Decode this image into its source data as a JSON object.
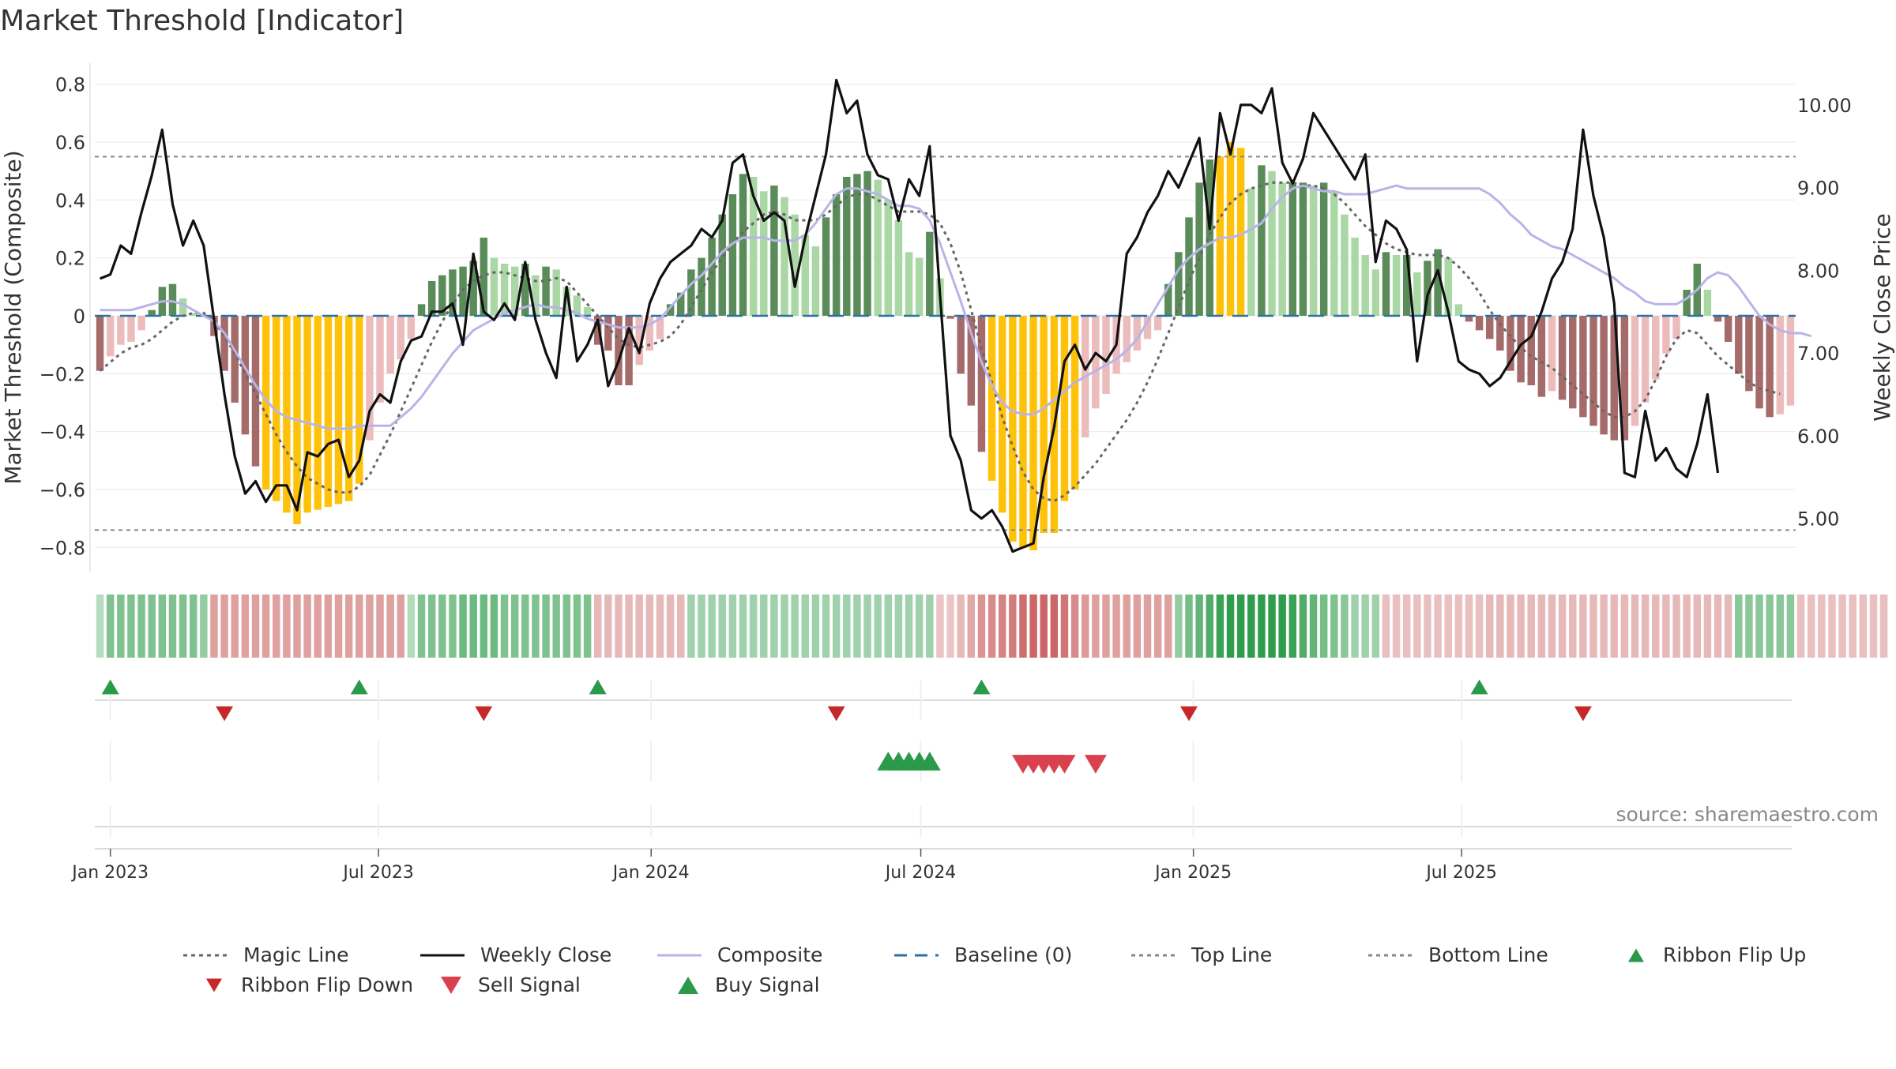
{
  "colors": {
    "pos_dark": "#5a8c5a",
    "pos_light": "#a9d8a4",
    "neg_dark": "#a56b6b",
    "neg_light": "#ecbcbc",
    "extreme": "#ffc20a",
    "close": "#111111",
    "composite": "#b9b4e8",
    "magic": "#666666",
    "baseline": "#2b6fa5",
    "threshold": "#888888",
    "buy": "#2a9a4a",
    "sell": "#d9414f"
  },
  "chart_data": {
    "type": "bar",
    "title": "Market Threshold [Indicator]",
    "ylabel_left": "Market Threshold (Composite)",
    "ylabel_right": "Weekly Close Price",
    "ylim_left": [
      -0.9,
      0.9
    ],
    "ylim_right": [
      4.3,
      10.6
    ],
    "left_ticks": [
      "0.8",
      "0.6",
      "0.4",
      "0.2",
      "0",
      "−0.2",
      "−0.4",
      "−0.6",
      "−0.8"
    ],
    "left_tick_values": [
      0.8,
      0.6,
      0.4,
      0.2,
      0,
      -0.2,
      -0.4,
      -0.6,
      -0.8
    ],
    "right_ticks": [
      "10.00",
      "9.00",
      "8.00",
      "7.00",
      "6.00",
      "5.00"
    ],
    "right_tick_values": [
      10,
      9,
      8,
      7,
      6,
      5
    ],
    "top_line": 0.55,
    "bottom_line": -0.74,
    "baseline": 0,
    "start_date": "2022-12-25",
    "x_ticks": [
      {
        "label": "Jan 2023",
        "date": "2023-01-01"
      },
      {
        "label": "Jul 2023",
        "date": "2023-07-01"
      },
      {
        "label": "Jan 2024",
        "date": "2024-01-01"
      },
      {
        "label": "Jul 2024",
        "date": "2024-07-01"
      },
      {
        "label": "Jan 2025",
        "date": "2025-01-01"
      },
      {
        "label": "Jul 2025",
        "date": "2025-07-01"
      }
    ],
    "composite_bars": [
      -0.19,
      -0.14,
      -0.1,
      -0.09,
      -0.05,
      0.02,
      0.1,
      0.11,
      0.06,
      0.01,
      0,
      -0.07,
      -0.19,
      -0.3,
      -0.41,
      -0.52,
      -0.6,
      -0.64,
      -0.68,
      -0.72,
      -0.68,
      -0.67,
      -0.66,
      -0.65,
      -0.64,
      -0.58,
      -0.43,
      -0.3,
      -0.2,
      -0.15,
      -0.08,
      0.04,
      0.12,
      0.14,
      0.16,
      0.17,
      0.19,
      0.27,
      0.2,
      0.18,
      0.17,
      0.18,
      0.14,
      0.17,
      0.16,
      0.1,
      0.07,
      0.03,
      -0.1,
      -0.12,
      -0.24,
      -0.24,
      -0.17,
      -0.12,
      -0.08,
      0.04,
      0.08,
      0.16,
      0.2,
      0.27,
      0.35,
      0.42,
      0.49,
      0.48,
      0.43,
      0.45,
      0.41,
      0.35,
      0.28,
      0.24,
      0.34,
      0.42,
      0.48,
      0.49,
      0.5,
      0.47,
      0.4,
      0.33,
      0.22,
      0.2,
      0.29,
      0.13,
      -0.01,
      -0.2,
      -0.31,
      -0.47,
      -0.57,
      -0.68,
      -0.78,
      -0.8,
      -0.81,
      -0.75,
      -0.75,
      -0.64,
      -0.6,
      -0.42,
      -0.32,
      -0.27,
      -0.2,
      -0.16,
      -0.12,
      -0.08,
      -0.05,
      0.11,
      0.22,
      0.34,
      0.46,
      0.54,
      0.55,
      0.6,
      0.58,
      0.44,
      0.52,
      0.5,
      0.46,
      0.46,
      0.46,
      0.45,
      0.46,
      0.43,
      0.35,
      0.27,
      0.21,
      0.16,
      0.22,
      0.21,
      0.21,
      0.15,
      0.19,
      0.23,
      0.2,
      0.04,
      -0.02,
      -0.05,
      -0.08,
      -0.12,
      -0.19,
      -0.23,
      -0.24,
      -0.28,
      -0.26,
      -0.29,
      -0.32,
      -0.35,
      -0.38,
      -0.41,
      -0.43,
      -0.43,
      -0.38,
      -0.3,
      -0.22,
      -0.13,
      -0.08,
      0.09,
      0.18,
      0.09,
      -0.02,
      -0.09,
      -0.2,
      -0.26,
      -0.32,
      -0.35,
      -0.34,
      -0.31
    ],
    "composite_line": [
      0.02,
      0.02,
      0.02,
      0.02,
      0.03,
      0.04,
      0.05,
      0.05,
      0.04,
      0.02,
      0,
      -0.02,
      -0.06,
      -0.12,
      -0.18,
      -0.24,
      -0.29,
      -0.33,
      -0.35,
      -0.36,
      -0.37,
      -0.38,
      -0.39,
      -0.39,
      -0.39,
      -0.38,
      -0.38,
      -0.38,
      -0.38,
      -0.35,
      -0.32,
      -0.28,
      -0.23,
      -0.18,
      -0.13,
      -0.09,
      -0.05,
      -0.03,
      -0.01,
      0.01,
      0.02,
      0.03,
      0.04,
      0.03,
      0.03,
      0.02,
      0.01,
      -0.01,
      -0.02,
      -0.03,
      -0.04,
      -0.04,
      -0.04,
      -0.03,
      -0.01,
      0.03,
      0.07,
      0.11,
      0.14,
      0.18,
      0.22,
      0.25,
      0.27,
      0.27,
      0.27,
      0.26,
      0.26,
      0.26,
      0.28,
      0.32,
      0.37,
      0.42,
      0.44,
      0.44,
      0.43,
      0.42,
      0.4,
      0.38,
      0.38,
      0.37,
      0.33,
      0.25,
      0.15,
      0.05,
      -0.06,
      -0.16,
      -0.24,
      -0.3,
      -0.33,
      -0.34,
      -0.34,
      -0.32,
      -0.29,
      -0.26,
      -0.23,
      -0.21,
      -0.19,
      -0.17,
      -0.15,
      -0.12,
      -0.08,
      -0.02,
      0.04,
      0.1,
      0.16,
      0.2,
      0.23,
      0.25,
      0.27,
      0.27,
      0.28,
      0.3,
      0.32,
      0.37,
      0.41,
      0.44,
      0.45,
      0.44,
      0.43,
      0.43,
      0.42,
      0.42,
      0.42,
      0.43,
      0.44,
      0.45,
      0.44,
      0.44,
      0.44,
      0.44,
      0.44,
      0.44,
      0.44,
      0.44,
      0.42,
      0.39,
      0.35,
      0.32,
      0.28,
      0.26,
      0.24,
      0.23,
      0.21,
      0.19,
      0.17,
      0.15,
      0.13,
      0.1,
      0.08,
      0.05,
      0.04,
      0.04,
      0.04,
      0.06,
      0.09,
      0.13,
      0.15,
      0.14,
      0.1,
      0.05,
      0,
      -0.03,
      -0.05,
      -0.06,
      -0.06,
      -0.07
    ],
    "magic_line": [
      -0.19,
      -0.16,
      -0.13,
      -0.11,
      -0.1,
      -0.08,
      -0.05,
      -0.02,
      0,
      0.01,
      0.01,
      -0.02,
      -0.07,
      -0.13,
      -0.2,
      -0.27,
      -0.34,
      -0.41,
      -0.47,
      -0.52,
      -0.56,
      -0.58,
      -0.6,
      -0.61,
      -0.61,
      -0.59,
      -0.55,
      -0.48,
      -0.41,
      -0.33,
      -0.25,
      -0.17,
      -0.09,
      -0.02,
      0.04,
      0.09,
      0.12,
      0.14,
      0.15,
      0.15,
      0.14,
      0.13,
      0.12,
      0.12,
      0.13,
      0.12,
      0.08,
      0.04,
      0,
      -0.04,
      -0.08,
      -0.1,
      -0.11,
      -0.1,
      -0.09,
      -0.07,
      -0.03,
      0.03,
      0.09,
      0.15,
      0.2,
      0.25,
      0.29,
      0.32,
      0.35,
      0.36,
      0.35,
      0.33,
      0.33,
      0.33,
      0.35,
      0.38,
      0.41,
      0.42,
      0.42,
      0.4,
      0.38,
      0.36,
      0.36,
      0.36,
      0.35,
      0.32,
      0.25,
      0.15,
      0.02,
      -0.11,
      -0.23,
      -0.35,
      -0.45,
      -0.54,
      -0.6,
      -0.63,
      -0.64,
      -0.62,
      -0.59,
      -0.55,
      -0.51,
      -0.46,
      -0.41,
      -0.36,
      -0.3,
      -0.23,
      -0.15,
      -0.06,
      0.03,
      0.12,
      0.2,
      0.28,
      0.34,
      0.39,
      0.42,
      0.44,
      0.45,
      0.46,
      0.46,
      0.46,
      0.45,
      0.45,
      0.44,
      0.42,
      0.39,
      0.35,
      0.31,
      0.28,
      0.25,
      0.23,
      0.22,
      0.21,
      0.21,
      0.21,
      0.2,
      0.17,
      0.13,
      0.08,
      0.02,
      -0.03,
      -0.07,
      -0.11,
      -0.14,
      -0.16,
      -0.18,
      -0.21,
      -0.24,
      -0.27,
      -0.3,
      -0.33,
      -0.35,
      -0.35,
      -0.33,
      -0.29,
      -0.22,
      -0.14,
      -0.08,
      -0.05,
      -0.06,
      -0.1,
      -0.14,
      -0.17,
      -0.2,
      -0.23,
      -0.25,
      -0.26,
      -0.27
    ],
    "weekly_close": [
      7.9,
      7.95,
      8.3,
      8.2,
      8.7,
      9.15,
      9.7,
      8.8,
      8.3,
      8.6,
      8.3,
      7.4,
      6.5,
      5.75,
      5.3,
      5.45,
      5.2,
      5.4,
      5.4,
      5.1,
      5.8,
      5.75,
      5.9,
      5.95,
      5.5,
      5.7,
      6.3,
      6.5,
      6.4,
      6.9,
      7.15,
      7.2,
      7.5,
      7.5,
      7.6,
      7.1,
      8.2,
      7.5,
      7.4,
      7.6,
      7.4,
      8.1,
      7.4,
      7.0,
      6.7,
      7.8,
      6.9,
      7.1,
      7.4,
      6.6,
      6.9,
      7.3,
      7.0,
      7.6,
      7.9,
      8.1,
      8.2,
      8.3,
      8.5,
      8.4,
      8.6,
      9.3,
      9.4,
      8.9,
      8.6,
      8.7,
      8.6,
      7.8,
      8.4,
      8.9,
      9.4,
      10.3,
      9.9,
      10.05,
      9.4,
      9.15,
      9.1,
      8.6,
      9.1,
      8.9,
      9.5,
      7.7,
      6.0,
      5.7,
      5.1,
      5.0,
      5.1,
      4.9,
      4.6,
      4.65,
      4.7,
      5.5,
      6.1,
      6.9,
      7.1,
      6.8,
      7.0,
      6.9,
      7.1,
      8.2,
      8.4,
      8.7,
      8.9,
      9.2,
      9.0,
      9.3,
      9.6,
      8.5,
      9.9,
      9.4,
      10.0,
      10.0,
      9.9,
      10.2,
      9.3,
      9.05,
      9.35,
      9.9,
      9.7,
      9.5,
      9.3,
      9.1,
      9.4,
      8.1,
      8.6,
      8.5,
      8.25,
      6.9,
      7.7,
      8.0,
      7.5,
      6.9,
      6.8,
      6.75,
      6.6,
      6.7,
      6.9,
      7.1,
      7.2,
      7.5,
      7.9,
      8.1,
      8.5,
      9.7,
      8.9,
      8.4,
      7.6,
      5.55,
      5.5,
      6.3,
      5.7,
      5.85,
      5.6,
      5.5,
      5.9,
      6.5,
      5.55
    ],
    "ribbon_strength": [
      0.18,
      0.45,
      0.45,
      0.45,
      0.45,
      0.45,
      0.45,
      0.45,
      0.45,
      0.45,
      0.35,
      -0.45,
      -0.45,
      -0.45,
      -0.45,
      -0.45,
      -0.45,
      -0.45,
      -0.45,
      -0.45,
      -0.45,
      -0.45,
      -0.45,
      -0.45,
      -0.45,
      -0.45,
      -0.45,
      -0.45,
      -0.45,
      -0.45,
      0.2,
      0.45,
      0.45,
      0.45,
      0.45,
      0.55,
      0.55,
      0.55,
      0.55,
      0.45,
      0.45,
      0.45,
      0.45,
      0.45,
      0.45,
      0.45,
      0.45,
      0.45,
      -0.3,
      -0.3,
      -0.3,
      -0.3,
      -0.3,
      -0.3,
      -0.3,
      -0.3,
      -0.3,
      0.3,
      0.3,
      0.3,
      0.3,
      0.3,
      0.3,
      0.3,
      0.3,
      0.3,
      0.3,
      0.3,
      0.3,
      0.3,
      0.3,
      0.3,
      0.3,
      0.3,
      0.3,
      0.3,
      0.3,
      0.3,
      0.3,
      0.3,
      0.3,
      -0.2,
      -0.2,
      -0.3,
      -0.4,
      -0.55,
      -0.6,
      -0.65,
      -0.7,
      -0.8,
      -0.85,
      -0.85,
      -0.85,
      -0.75,
      -0.6,
      -0.5,
      -0.45,
      -0.45,
      -0.45,
      -0.45,
      -0.45,
      -0.45,
      -0.45,
      -0.45,
      0.35,
      0.5,
      0.6,
      0.7,
      0.8,
      0.85,
      0.85,
      0.85,
      0.85,
      0.85,
      0.85,
      0.8,
      0.7,
      0.6,
      0.5,
      0.45,
      0.4,
      0.3,
      0.3,
      0.3,
      -0.25,
      -0.25,
      -0.25,
      -0.25,
      -0.25,
      -0.25,
      -0.25,
      -0.25,
      -0.25,
      -0.25,
      -0.3,
      -0.3,
      -0.3,
      -0.3,
      -0.3,
      -0.3,
      -0.3,
      -0.3,
      -0.3,
      -0.3,
      -0.3,
      -0.3,
      -0.3,
      -0.3,
      -0.3,
      -0.3,
      -0.3,
      -0.3,
      -0.3,
      -0.3,
      -0.3,
      -0.3,
      -0.3,
      -0.3,
      0.4,
      0.4,
      0.4,
      0.4,
      0.4,
      0.4,
      -0.25,
      -0.25,
      -0.25,
      -0.25,
      -0.25,
      -0.25,
      -0.25,
      -0.25,
      -0.25
    ],
    "ribbon_flip_up": [
      "2023-01-01",
      "2023-06-18",
      "2023-11-26",
      "2024-08-11",
      "2025-07-13"
    ],
    "ribbon_flip_down": [
      "2023-03-19",
      "2023-09-10",
      "2024-05-05",
      "2024-12-29",
      "2025-09-21"
    ],
    "buy_signals": [
      "2024-06-09",
      "2024-06-16",
      "2024-06-23",
      "2024-06-30",
      "2024-07-07"
    ],
    "sell_signals": [
      "2024-09-08",
      "2024-09-15",
      "2024-09-22",
      "2024-09-29",
      "2024-10-06",
      "2024-10-27"
    ],
    "source": "source: sharemaestro.com"
  },
  "legend": [
    {
      "label": "Magic Line",
      "kind": "dotted",
      "color": "#666666"
    },
    {
      "label": "Weekly Close",
      "kind": "solid",
      "color": "#111111"
    },
    {
      "label": "Composite",
      "kind": "solid",
      "color": "#b9b4e8"
    },
    {
      "label": "Baseline (0)",
      "kind": "dashed",
      "color": "#2b6fa5"
    },
    {
      "label": "Top Line",
      "kind": "dotted",
      "color": "#888888"
    },
    {
      "label": "Bottom Line",
      "kind": "dotted",
      "color": "#888888"
    },
    {
      "label": "Ribbon Flip Up",
      "kind": "tri-up-small",
      "color": "#2a9a4a"
    },
    {
      "label": "Ribbon Flip Down",
      "kind": "tri-down-small",
      "color": "#c62828"
    },
    {
      "label": "Sell Signal",
      "kind": "tri-down",
      "color": "#d9414f"
    },
    {
      "label": "Buy Signal",
      "kind": "tri-up",
      "color": "#2a9a4a"
    }
  ]
}
